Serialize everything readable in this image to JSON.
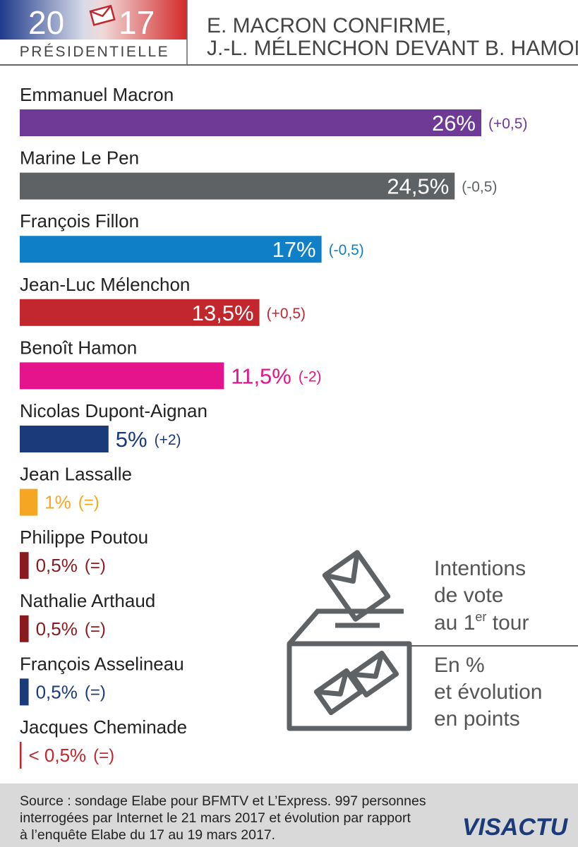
{
  "chart_data": {
    "type": "hbar",
    "header": {
      "year_left": "20",
      "year_right": "17",
      "label": "PRÉSIDENTIELLE"
    },
    "title_lines": [
      "E. MACRON CONFIRME,",
      "J.-L. MÉLENCHON DEVANT B. HAMON"
    ],
    "categories": [
      "Emmanuel Macron",
      "Marine Le Pen",
      "François Fillon",
      "Jean-Luc Mélenchon",
      "Benoît Hamon",
      "Nicolas Dupont-Aignan",
      "Jean Lassalle",
      "Philippe Poutou",
      "Nathalie Arthaud",
      "François Asselineau",
      "Jacques Cheminade"
    ],
    "values": [
      26,
      24.5,
      17,
      13.5,
      11.5,
      5,
      1,
      0.5,
      0.5,
      0.5,
      0.1
    ],
    "value_labels": [
      "26%",
      "24,5%",
      "17%",
      "13,5%",
      "11,5%",
      "5%",
      "1%",
      "0,5%",
      "0,5%",
      "0,5%",
      "< 0,5%"
    ],
    "changes": [
      "(+0,5)",
      "(-0,5)",
      "(-0,5)",
      "(+0,5)",
      "(-2)",
      "(+2)",
      "(=)",
      "(=)",
      "(=)",
      "(=)",
      "(=)"
    ],
    "colors": [
      "#6f3a96",
      "#5f6264",
      "#0f7fc8",
      "#c1272d",
      "#e5138c",
      "#1b3a7a",
      "#f5a623",
      "#8b1a1e",
      "#8b1a1e",
      "#1b3a7a",
      "#c1272d"
    ],
    "side_note": {
      "line1": "Intentions",
      "line2": "de vote",
      "line3": "au 1",
      "sup": "er",
      "line3_end": " tour",
      "line4": "En %",
      "line5": "et évolution",
      "line6": "en points"
    },
    "source_lines": [
      "Source : sondage Elabe pour BFMTV et L’Express. 997 personnes",
      "interrogées par Internet le 21 mars 2017 et évolution par rapport",
      "à l’enquête Elabe du 17 au 19 mars 2017."
    ],
    "logo": "VISACTU"
  }
}
